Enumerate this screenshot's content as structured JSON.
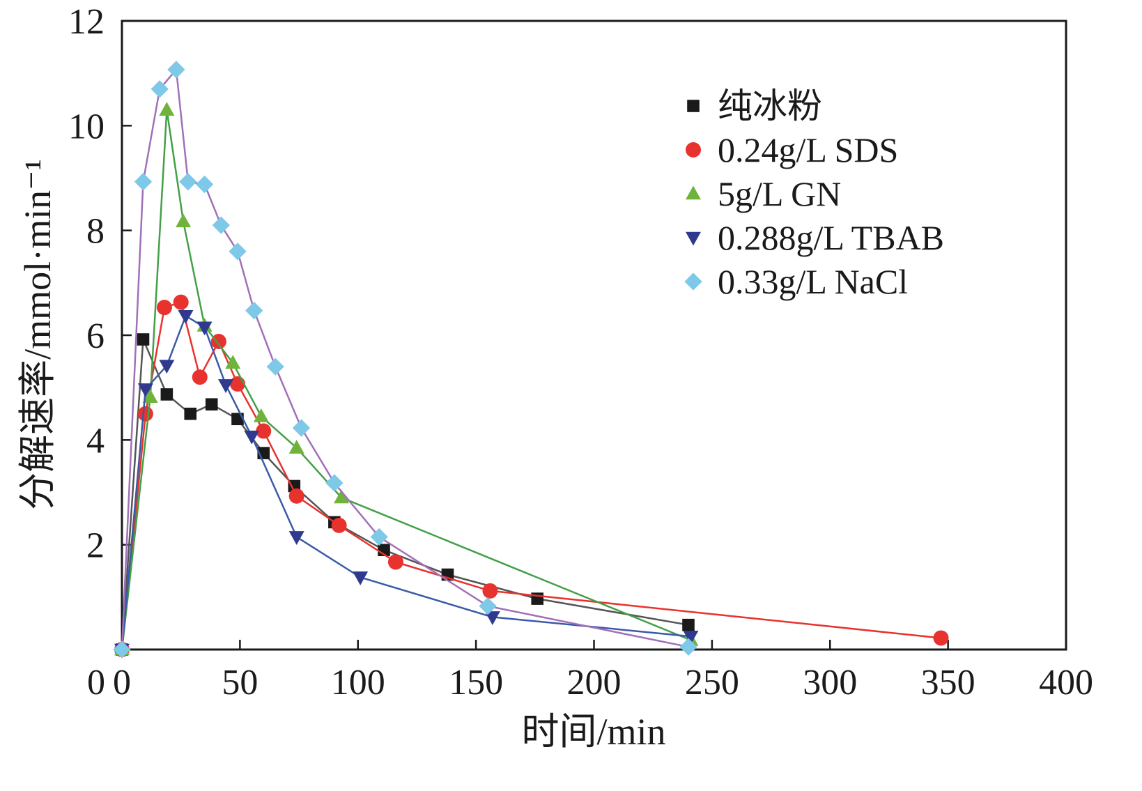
{
  "chart_data": {
    "type": "line",
    "title": "",
    "xlabel": "时间/min",
    "ylabel": "分解速率/mmol·min⁻¹",
    "xlim": [
      0,
      400
    ],
    "ylim": [
      0,
      12
    ],
    "xticks": [
      0,
      50,
      100,
      150,
      200,
      250,
      300,
      350,
      400
    ],
    "yticks": [
      2,
      4,
      6,
      8,
      10,
      12
    ],
    "x_origin_label": "0",
    "grid": false,
    "legend_position": "top-right",
    "series": [
      {
        "name": "纯冰粉",
        "marker": "square",
        "marker_color": "#1a1a1a",
        "line_color": "#555555",
        "points": [
          [
            0,
            0
          ],
          [
            9,
            5.92
          ],
          [
            19,
            4.87
          ],
          [
            29,
            4.5
          ],
          [
            38,
            4.68
          ],
          [
            49,
            4.4
          ],
          [
            60,
            3.75
          ],
          [
            73,
            3.12
          ],
          [
            90,
            2.43
          ],
          [
            111,
            1.9
          ],
          [
            138,
            1.43
          ],
          [
            176,
            0.97
          ],
          [
            240,
            0.47
          ]
        ]
      },
      {
        "name": "0.24g/L SDS",
        "marker": "circle",
        "marker_color": "#e8322e",
        "line_color": "#e8322e",
        "points": [
          [
            0,
            0
          ],
          [
            10,
            4.5
          ],
          [
            18,
            6.53
          ],
          [
            25,
            6.63
          ],
          [
            33,
            5.2
          ],
          [
            41,
            5.88
          ],
          [
            49,
            5.07
          ],
          [
            60,
            4.17
          ],
          [
            74,
            2.93
          ],
          [
            92,
            2.37
          ],
          [
            116,
            1.67
          ],
          [
            156,
            1.12
          ],
          [
            347,
            0.22
          ]
        ]
      },
      {
        "name": "5g/L GN",
        "marker": "triangle-up",
        "marker_color": "#6fb33a",
        "line_color": "#43a047",
        "points": [
          [
            0,
            0
          ],
          [
            12,
            4.82
          ],
          [
            19,
            10.3
          ],
          [
            26,
            8.17
          ],
          [
            35,
            6.18
          ],
          [
            47,
            5.47
          ],
          [
            59,
            4.45
          ],
          [
            74,
            3.85
          ],
          [
            93,
            2.9
          ],
          [
            241,
            0.18
          ]
        ]
      },
      {
        "name": "0.288g/L TBAB",
        "marker": "triangle-down",
        "marker_color": "#2f3a8f",
        "line_color": "#3a5aa8",
        "points": [
          [
            0,
            0
          ],
          [
            10,
            4.97
          ],
          [
            19,
            5.42
          ],
          [
            27,
            6.37
          ],
          [
            35,
            6.15
          ],
          [
            44,
            5.05
          ],
          [
            55,
            4.07
          ],
          [
            74,
            2.15
          ],
          [
            101,
            1.38
          ],
          [
            157,
            0.62
          ],
          [
            241,
            0.25
          ]
        ]
      },
      {
        "name": "0.33g/L NaCl",
        "marker": "diamond",
        "marker_color": "#7ec8e8",
        "line_color": "#a070b8",
        "points": [
          [
            0,
            0
          ],
          [
            9,
            8.93
          ],
          [
            16,
            10.7
          ],
          [
            23,
            11.07
          ],
          [
            28,
            8.93
          ],
          [
            35,
            8.88
          ],
          [
            42,
            8.1
          ],
          [
            49,
            7.6
          ],
          [
            56,
            6.47
          ],
          [
            65,
            5.4
          ],
          [
            76,
            4.23
          ],
          [
            90,
            3.18
          ],
          [
            109,
            2.15
          ],
          [
            155,
            0.83
          ],
          [
            240,
            0.05
          ]
        ]
      }
    ]
  }
}
